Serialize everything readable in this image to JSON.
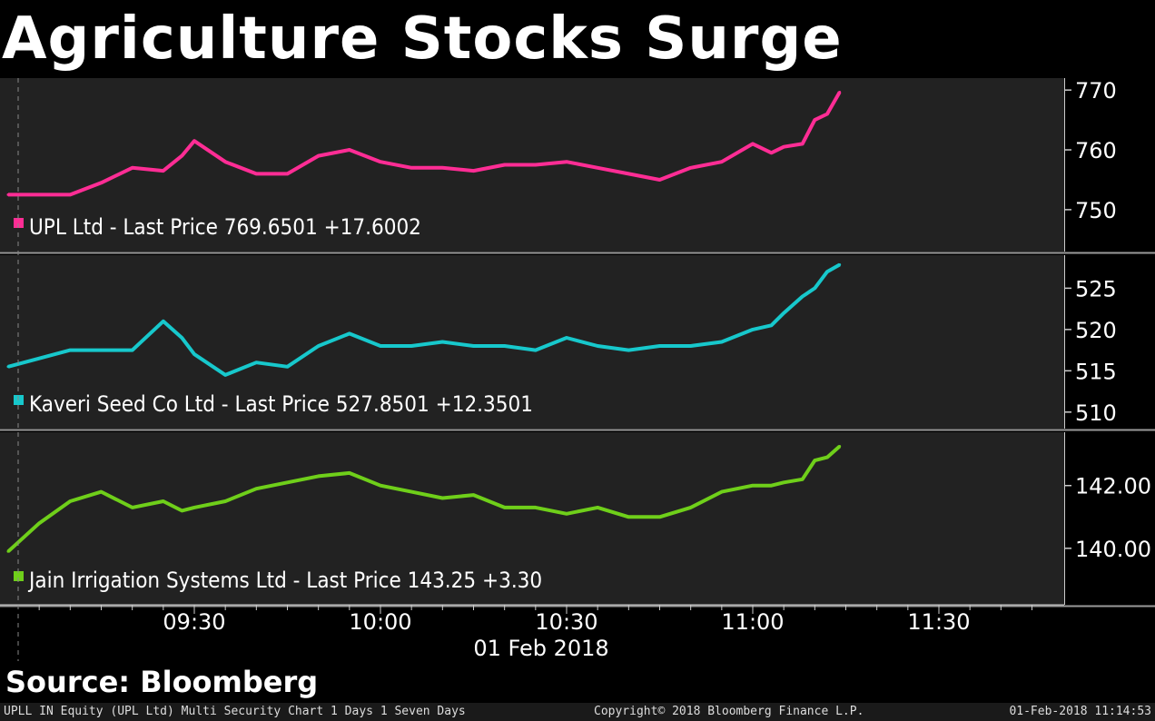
{
  "title": "Agriculture Stocks Surge",
  "source": "Source: Bloomberg",
  "footer": {
    "left": "UPLL IN Equity (UPL Ltd) Multi Security Chart 1 Days 1 Seven Days",
    "center": "Copyright© 2018 Bloomberg Finance L.P.",
    "right": "01-Feb-2018 11:14:53"
  },
  "chart_data": {
    "type": "line",
    "x_ticks": [
      "09:30",
      "10:00",
      "10:30",
      "11:00",
      "11:30"
    ],
    "x_date_label": "01 Feb 2018",
    "x": [
      "09:00",
      "09:05",
      "09:10",
      "09:15",
      "09:20",
      "09:25",
      "09:28",
      "09:30",
      "09:35",
      "09:40",
      "09:45",
      "09:50",
      "09:55",
      "10:00",
      "10:05",
      "10:10",
      "10:15",
      "10:20",
      "10:25",
      "10:30",
      "10:35",
      "10:40",
      "10:45",
      "10:50",
      "10:55",
      "11:00",
      "11:03",
      "11:05",
      "11:08",
      "11:10",
      "11:12",
      "11:14"
    ],
    "colors": {
      "upl": "#ff2d95",
      "kaveri": "#17c8cc",
      "jain": "#6fcf1a",
      "panel_bg": "#222222",
      "axis": "#cccccc"
    },
    "panels": [
      {
        "key": "upl",
        "legend": "UPL Ltd - Last Price 769.6501 +17.6002",
        "y_ticks": [
          "770",
          "760",
          "750"
        ],
        "y_tick_values": [
          770,
          760,
          750
        ],
        "ylim": [
          743,
          772
        ],
        "values": [
          752.5,
          752.5,
          752.5,
          754.5,
          757,
          756.5,
          759,
          761.5,
          758,
          756,
          756,
          759,
          760,
          758,
          757,
          757,
          756.5,
          757.5,
          757.5,
          758,
          757,
          756,
          755,
          757,
          758,
          761,
          759.5,
          760.5,
          761,
          765,
          766,
          769.65
        ]
      },
      {
        "key": "kaveri",
        "legend": "Kaveri Seed Co Ltd - Last Price 527.8501 +12.3501",
        "y_ticks": [
          "525",
          "520",
          "515",
          "510"
        ],
        "y_tick_values": [
          525,
          520,
          515,
          510
        ],
        "ylim": [
          508,
          529
        ],
        "values": [
          515.5,
          516.5,
          517.5,
          517.5,
          517.5,
          521,
          519,
          517,
          514.5,
          516,
          515.5,
          518,
          519.5,
          518,
          518,
          518.5,
          518,
          518,
          517.5,
          519,
          518,
          517.5,
          518,
          518,
          518.5,
          520,
          520.5,
          522,
          524,
          525,
          527,
          527.85
        ]
      },
      {
        "key": "jain",
        "legend": "Jain Irrigation Systems Ltd - Last Price 143.25 +3.30",
        "y_ticks": [
          "142.00",
          "140.00"
        ],
        "y_tick_values": [
          142,
          140
        ],
        "ylim": [
          138.2,
          143.7
        ],
        "values": [
          139.9,
          140.8,
          141.5,
          141.8,
          141.3,
          141.5,
          141.2,
          141.3,
          141.5,
          141.9,
          142.1,
          142.3,
          142.4,
          142.0,
          141.8,
          141.6,
          141.7,
          141.3,
          141.3,
          141.1,
          141.3,
          141.0,
          141.0,
          141.3,
          141.8,
          142.0,
          142.0,
          142.1,
          142.2,
          142.8,
          142.9,
          143.25
        ]
      }
    ]
  }
}
